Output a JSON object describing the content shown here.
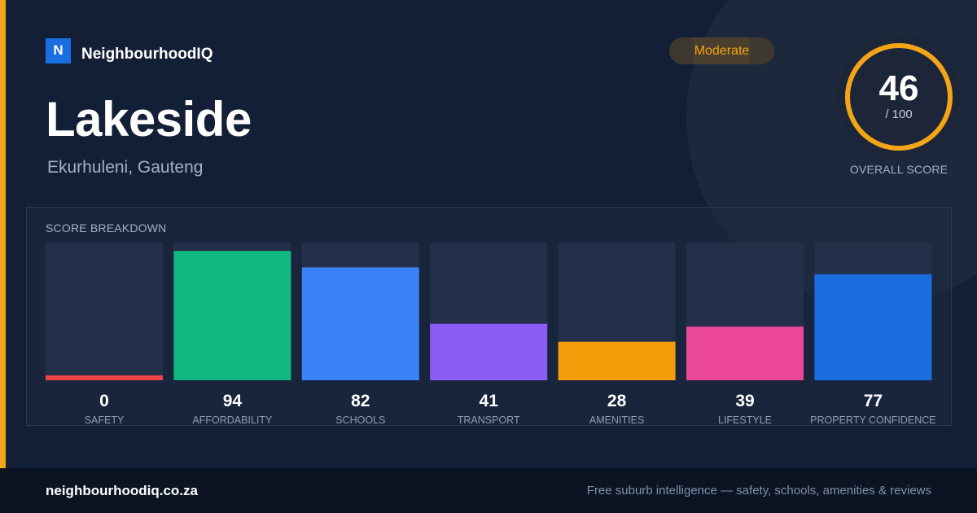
{
  "brand": {
    "mark": "N",
    "name": "NeighbourhoodIQ"
  },
  "suburb": {
    "name": "Lakeside",
    "location": "Ekurhuleni, Gauteng"
  },
  "rating": {
    "label": "Moderate"
  },
  "overall": {
    "score": "46",
    "max": "/ 100",
    "fraction": 0.46,
    "label": "OVERALL SCORE"
  },
  "breakdown": {
    "title": "SCORE BREAKDOWN"
  },
  "chart_data": {
    "type": "bar",
    "title": "SCORE BREAKDOWN",
    "ylim": [
      0,
      100
    ],
    "grid": false,
    "categories": [
      "SAFETY",
      "AFFORDABILITY",
      "SCHOOLS",
      "TRANSPORT",
      "AMENITIES",
      "LIFESTYLE",
      "PROPERTY CONFIDENCE"
    ],
    "values": [
      0,
      94,
      82,
      41,
      28,
      39,
      77
    ],
    "colors": [
      "#ef4444",
      "#10b981",
      "#3b82f6",
      "#8b5cf6",
      "#f59e0b",
      "#ec4899",
      "#1a6ee0"
    ]
  },
  "colors": {
    "accent": "#f4a417",
    "track": "#243049",
    "ring_track": "#2a3446"
  },
  "footer": {
    "url": "neighbourhoodiq.co.za",
    "tagline": "Free suburb intelligence — safety, schools, amenities & reviews"
  }
}
